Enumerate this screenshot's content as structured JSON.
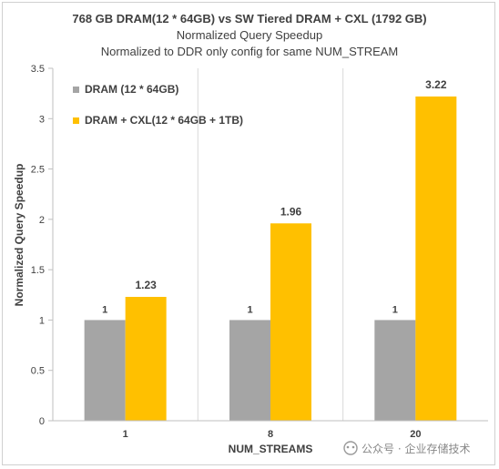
{
  "chart_data": {
    "type": "bar",
    "title": "768 GB DRAM(12 * 64GB) vs SW Tiered DRAM + CXL (1792 GB)",
    "subtitle": "Normalized Query Speedup",
    "subtitle2": "Normalized to DDR  only config for same NUM_STREAM",
    "xlabel": "NUM_STREAMS",
    "ylabel": "Normalized Query Speedup",
    "categories": [
      "1",
      "8",
      "20"
    ],
    "ylim": [
      0,
      3.5
    ],
    "yticks": [
      "0",
      "0.5",
      "1",
      "1.5",
      "2",
      "2.5",
      "3",
      "3.5"
    ],
    "grid": "vertical category separators",
    "legend_position": "top-left",
    "series": [
      {
        "name": "DRAM (12 * 64GB)",
        "values": [
          1,
          1,
          1
        ],
        "labels": [
          "1",
          "1",
          "1"
        ],
        "color": "#a5a5a5"
      },
      {
        "name": "DRAM + CXL(12 * 64GB + 1TB)",
        "values": [
          1.23,
          1.96,
          3.22
        ],
        "labels": [
          "1.23",
          "1.96",
          "3.22"
        ],
        "color": "#ffc000"
      }
    ]
  },
  "watermark": "公众号 · 企业存储技术"
}
